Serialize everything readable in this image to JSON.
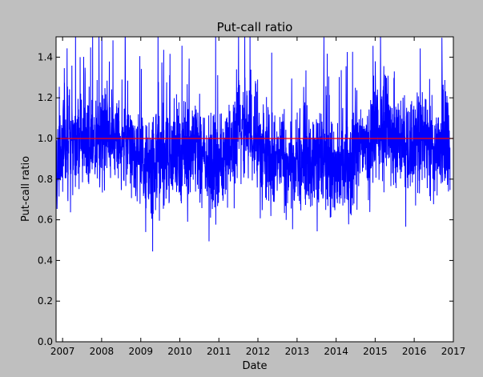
{
  "chart_data": {
    "type": "line",
    "title": "Put-call ratio",
    "xlabel": "Date",
    "ylabel": "Put-call ratio",
    "xlim": [
      "2006-11-01",
      "2017-01-01"
    ],
    "ylim": [
      0.0,
      1.5
    ],
    "grid": false,
    "legend": "none",
    "x_ticks": [
      "2007",
      "2008",
      "2009",
      "2010",
      "2011",
      "2012",
      "2013",
      "2014",
      "2015",
      "2016",
      "2017"
    ],
    "y_ticks": [
      "0.0",
      "0.2",
      "0.4",
      "0.6",
      "0.8",
      "1.0",
      "1.2",
      "1.4"
    ],
    "series": [
      {
        "color": "#0000ff",
        "x": [
          "2006-11",
          "2007-01",
          "2007-03",
          "2007-05",
          "2007-07",
          "2007-09",
          "2007-11",
          "2008-01",
          "2008-03",
          "2008-05",
          "2008-07",
          "2008-09",
          "2008-11",
          "2009-01",
          "2009-03",
          "2009-05",
          "2009-07",
          "2009-09",
          "2009-11",
          "2010-01",
          "2010-03",
          "2010-05",
          "2010-07",
          "2010-09",
          "2010-11",
          "2011-01",
          "2011-03",
          "2011-05",
          "2011-07",
          "2011-09",
          "2011-11",
          "2012-01",
          "2012-03",
          "2012-05",
          "2012-07",
          "2012-09",
          "2012-11",
          "2013-01",
          "2013-03",
          "2013-05",
          "2013-07",
          "2013-09",
          "2013-11",
          "2014-01",
          "2014-03",
          "2014-05",
          "2014-07",
          "2014-09",
          "2014-11",
          "2015-01",
          "2015-03",
          "2015-05",
          "2015-07",
          "2015-09",
          "2015-11",
          "2016-01",
          "2016-03",
          "2016-05",
          "2016-07",
          "2016-09",
          "2016-11",
          "2016-12"
        ],
        "values": [
          0.85,
          0.95,
          1.0,
          0.98,
          1.02,
          1.0,
          0.97,
          1.0,
          1.04,
          0.98,
          1.0,
          0.97,
          0.92,
          0.88,
          0.86,
          0.9,
          0.92,
          0.9,
          0.93,
          0.92,
          0.9,
          0.95,
          0.92,
          0.88,
          0.85,
          0.85,
          0.9,
          0.92,
          1.1,
          1.05,
          1.0,
          0.98,
          0.9,
          0.87,
          0.88,
          0.9,
          0.89,
          0.88,
          0.9,
          0.92,
          0.9,
          0.88,
          0.85,
          0.83,
          0.86,
          0.88,
          0.92,
          0.95,
          0.97,
          1.0,
          1.05,
          1.08,
          0.98,
          1.0,
          0.93,
          0.95,
          1.02,
          1.0,
          0.95,
          0.92,
          0.95,
          0.9
        ]
      },
      {
        "color": "#ff0000",
        "x": [
          "2006-11",
          "2017-01"
        ],
        "values": [
          1.0,
          1.0
        ]
      }
    ]
  }
}
